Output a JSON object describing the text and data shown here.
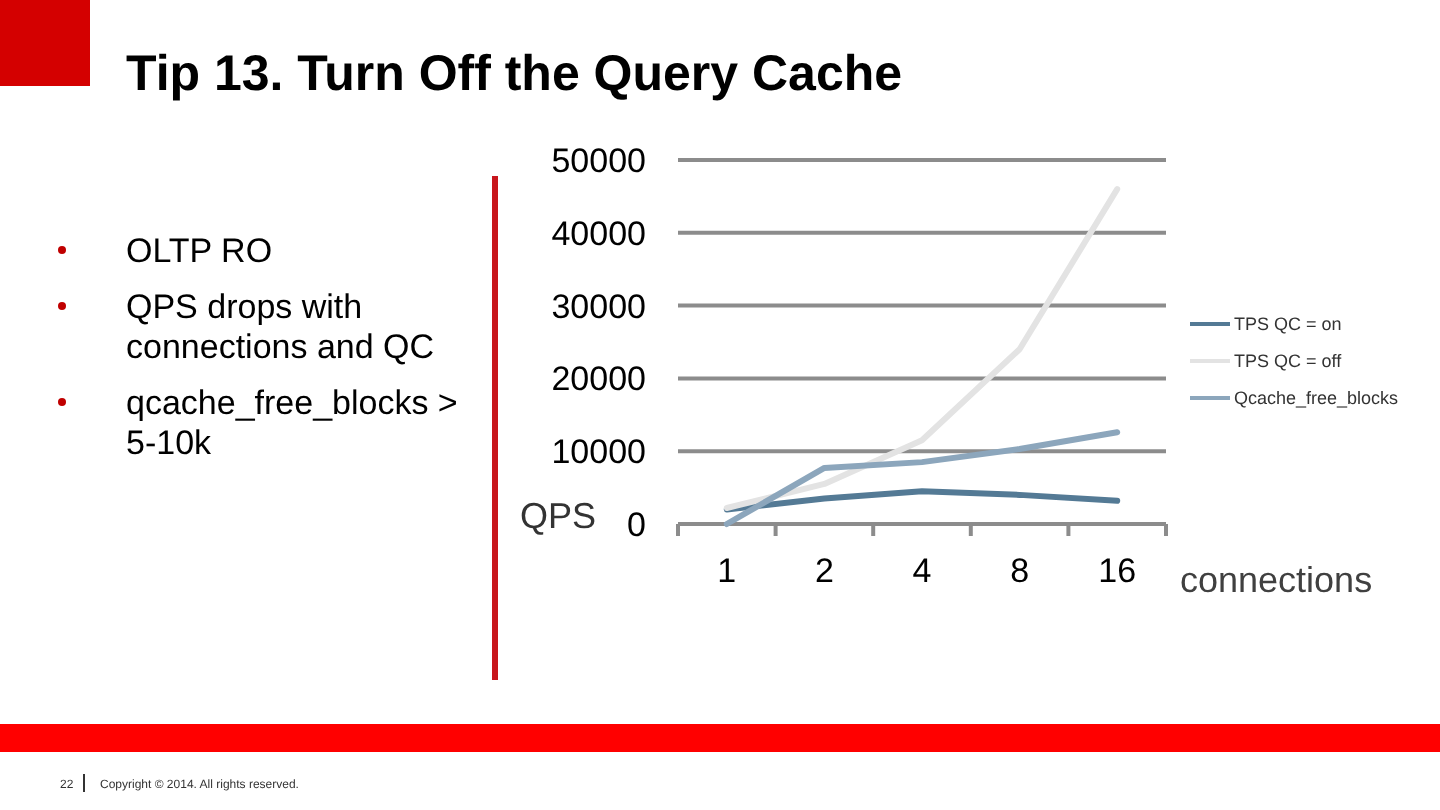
{
  "chart_data": {
    "type": "line",
    "title": "Tip 13. Turn Off the Query Cache",
    "xlabel": "connections",
    "ylabel": "QPS",
    "categories": [
      "1",
      "2",
      "4",
      "8",
      "16"
    ],
    "series": [
      {
        "name": "TPS QC = on",
        "color": "#547a95",
        "values": [
          2000,
          3500,
          4500,
          4000,
          3200
        ]
      },
      {
        "name": "TPS QC = off",
        "color": "#e3e3e3",
        "values": [
          2200,
          5500,
          11500,
          24000,
          46000
        ]
      },
      {
        "name": "Qcache_free_blocks",
        "color": "#8ca6bc",
        "values": [
          0,
          7700,
          8500,
          10300,
          12600
        ]
      }
    ],
    "ylim": [
      0,
      50000
    ],
    "yticks": [
      0,
      10000,
      20000,
      30000,
      40000,
      50000
    ],
    "grid": "y",
    "legend": "right",
    "annotations": [
      "OLTP RO",
      "QPS drops with connections and QC",
      "qcache_free_blocks > 5-10k",
      "22",
      "Copyright © 2014. All rights reserved."
    ]
  }
}
